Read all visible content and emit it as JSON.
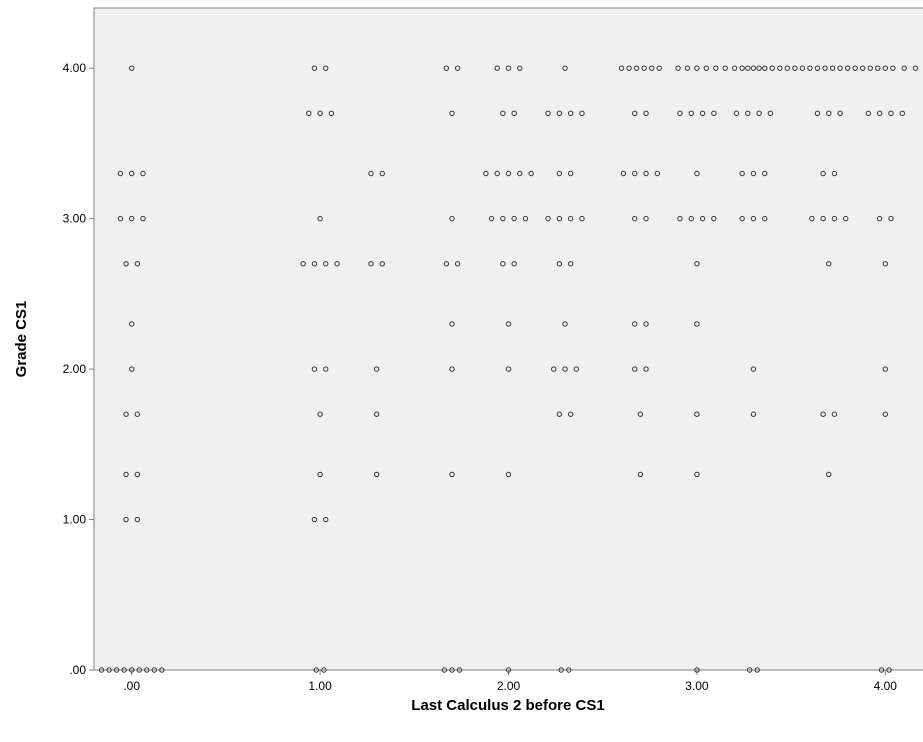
{
  "chart_data": {
    "type": "scatter",
    "title": "",
    "xlabel": "Last Calculus 2 before CS1",
    "ylabel": "Grade CS1",
    "xlim": [
      -0.2,
      4.2
    ],
    "ylim": [
      0,
      4.4
    ],
    "grid": false,
    "x_ticks": [
      {
        "value": 0,
        "label": ".00"
      },
      {
        "value": 1,
        "label": "1.00"
      },
      {
        "value": 2,
        "label": "2.00"
      },
      {
        "value": 3,
        "label": "3.00"
      },
      {
        "value": 4,
        "label": "4.00"
      }
    ],
    "y_ticks": [
      {
        "value": 0,
        "label": ".00"
      },
      {
        "value": 1,
        "label": "1.00"
      },
      {
        "value": 2,
        "label": "2.00"
      },
      {
        "value": 3,
        "label": "3.00"
      },
      {
        "value": 4,
        "label": "4.00"
      }
    ],
    "colors": {
      "plot_background": "#f0f0f0",
      "point_stroke": "#333333",
      "frame": "#808080"
    },
    "points": [
      [
        0.0,
        4.0
      ],
      [
        -0.06,
        3.3
      ],
      [
        0.0,
        3.3
      ],
      [
        0.06,
        3.3
      ],
      [
        -0.06,
        3.0
      ],
      [
        0.0,
        3.0
      ],
      [
        0.06,
        3.0
      ],
      [
        -0.03,
        2.7
      ],
      [
        0.03,
        2.7
      ],
      [
        0.0,
        2.3
      ],
      [
        0.0,
        2.0
      ],
      [
        -0.03,
        1.7
      ],
      [
        0.03,
        1.7
      ],
      [
        -0.03,
        1.3
      ],
      [
        0.03,
        1.3
      ],
      [
        -0.03,
        1.0
      ],
      [
        0.03,
        1.0
      ],
      [
        -0.16,
        0.0
      ],
      [
        -0.12,
        0.0
      ],
      [
        -0.08,
        0.0
      ],
      [
        -0.04,
        0.0
      ],
      [
        0.0,
        0.0
      ],
      [
        0.04,
        0.0
      ],
      [
        0.08,
        0.0
      ],
      [
        0.12,
        0.0
      ],
      [
        0.16,
        0.0
      ],
      [
        0.97,
        4.0
      ],
      [
        1.03,
        4.0
      ],
      [
        0.94,
        3.7
      ],
      [
        1.0,
        3.7
      ],
      [
        1.06,
        3.7
      ],
      [
        1.0,
        3.0
      ],
      [
        0.91,
        2.7
      ],
      [
        0.97,
        2.7
      ],
      [
        1.03,
        2.7
      ],
      [
        1.09,
        2.7
      ],
      [
        0.97,
        2.0
      ],
      [
        1.03,
        2.0
      ],
      [
        1.0,
        1.7
      ],
      [
        1.0,
        1.3
      ],
      [
        0.97,
        1.0
      ],
      [
        1.03,
        1.0
      ],
      [
        0.98,
        0.0
      ],
      [
        1.02,
        0.0
      ],
      [
        1.27,
        3.3
      ],
      [
        1.33,
        3.3
      ],
      [
        1.27,
        2.7
      ],
      [
        1.33,
        2.7
      ],
      [
        1.3,
        2.0
      ],
      [
        1.3,
        1.7
      ],
      [
        1.3,
        1.3
      ],
      [
        1.67,
        4.0
      ],
      [
        1.73,
        4.0
      ],
      [
        1.7,
        3.7
      ],
      [
        1.7,
        3.0
      ],
      [
        1.67,
        2.7
      ],
      [
        1.73,
        2.7
      ],
      [
        1.7,
        2.3
      ],
      [
        1.7,
        2.0
      ],
      [
        1.7,
        1.3
      ],
      [
        1.66,
        0.0
      ],
      [
        1.7,
        0.0
      ],
      [
        1.74,
        0.0
      ],
      [
        1.94,
        4.0
      ],
      [
        2.0,
        4.0
      ],
      [
        2.06,
        4.0
      ],
      [
        1.97,
        3.7
      ],
      [
        2.03,
        3.7
      ],
      [
        1.88,
        3.3
      ],
      [
        1.94,
        3.3
      ],
      [
        2.0,
        3.3
      ],
      [
        2.06,
        3.3
      ],
      [
        2.12,
        3.3
      ],
      [
        1.91,
        3.0
      ],
      [
        1.97,
        3.0
      ],
      [
        2.03,
        3.0
      ],
      [
        2.09,
        3.0
      ],
      [
        1.97,
        2.7
      ],
      [
        2.03,
        2.7
      ],
      [
        2.0,
        2.3
      ],
      [
        2.0,
        2.0
      ],
      [
        2.0,
        1.3
      ],
      [
        2.0,
        0.0
      ],
      [
        2.3,
        4.0
      ],
      [
        2.21,
        3.7
      ],
      [
        2.27,
        3.7
      ],
      [
        2.33,
        3.7
      ],
      [
        2.39,
        3.7
      ],
      [
        2.27,
        3.3
      ],
      [
        2.33,
        3.3
      ],
      [
        2.21,
        3.0
      ],
      [
        2.27,
        3.0
      ],
      [
        2.33,
        3.0
      ],
      [
        2.39,
        3.0
      ],
      [
        2.27,
        2.7
      ],
      [
        2.33,
        2.7
      ],
      [
        2.3,
        2.3
      ],
      [
        2.24,
        2.0
      ],
      [
        2.3,
        2.0
      ],
      [
        2.36,
        2.0
      ],
      [
        2.27,
        1.7
      ],
      [
        2.33,
        1.7
      ],
      [
        2.28,
        0.0
      ],
      [
        2.32,
        0.0
      ],
      [
        2.6,
        4.0
      ],
      [
        2.64,
        4.0
      ],
      [
        2.68,
        4.0
      ],
      [
        2.72,
        4.0
      ],
      [
        2.76,
        4.0
      ],
      [
        2.8,
        4.0
      ],
      [
        2.9,
        4.0
      ],
      [
        2.95,
        4.0
      ],
      [
        3.0,
        4.0
      ],
      [
        3.05,
        4.0
      ],
      [
        3.1,
        4.0
      ],
      [
        3.15,
        4.0
      ],
      [
        3.2,
        4.0
      ],
      [
        3.24,
        4.0
      ],
      [
        3.27,
        4.0
      ],
      [
        3.3,
        4.0
      ],
      [
        3.33,
        4.0
      ],
      [
        3.36,
        4.0
      ],
      [
        3.4,
        4.0
      ],
      [
        3.44,
        4.0
      ],
      [
        3.48,
        4.0
      ],
      [
        3.52,
        4.0
      ],
      [
        3.56,
        4.0
      ],
      [
        3.6,
        4.0
      ],
      [
        3.64,
        4.0
      ],
      [
        3.68,
        4.0
      ],
      [
        3.72,
        4.0
      ],
      [
        3.76,
        4.0
      ],
      [
        3.8,
        4.0
      ],
      [
        3.84,
        4.0
      ],
      [
        3.88,
        4.0
      ],
      [
        3.92,
        4.0
      ],
      [
        3.96,
        4.0
      ],
      [
        4.0,
        4.0
      ],
      [
        4.04,
        4.0
      ],
      [
        4.1,
        4.0
      ],
      [
        4.16,
        4.0
      ],
      [
        2.67,
        3.7
      ],
      [
        2.73,
        3.7
      ],
      [
        2.61,
        3.3
      ],
      [
        2.67,
        3.3
      ],
      [
        2.73,
        3.3
      ],
      [
        2.79,
        3.3
      ],
      [
        2.67,
        3.0
      ],
      [
        2.73,
        3.0
      ],
      [
        2.67,
        2.3
      ],
      [
        2.73,
        2.3
      ],
      [
        2.67,
        2.0
      ],
      [
        2.73,
        2.0
      ],
      [
        2.7,
        1.7
      ],
      [
        2.7,
        1.3
      ],
      [
        2.91,
        3.7
      ],
      [
        2.97,
        3.7
      ],
      [
        3.03,
        3.7
      ],
      [
        3.09,
        3.7
      ],
      [
        3.0,
        3.3
      ],
      [
        2.91,
        3.0
      ],
      [
        2.97,
        3.0
      ],
      [
        3.03,
        3.0
      ],
      [
        3.09,
        3.0
      ],
      [
        3.0,
        2.7
      ],
      [
        3.0,
        2.3
      ],
      [
        3.0,
        1.7
      ],
      [
        3.0,
        1.3
      ],
      [
        3.0,
        0.0
      ],
      [
        3.21,
        3.7
      ],
      [
        3.27,
        3.7
      ],
      [
        3.33,
        3.7
      ],
      [
        3.39,
        3.7
      ],
      [
        3.24,
        3.3
      ],
      [
        3.3,
        3.3
      ],
      [
        3.36,
        3.3
      ],
      [
        3.24,
        3.0
      ],
      [
        3.3,
        3.0
      ],
      [
        3.36,
        3.0
      ],
      [
        3.3,
        2.0
      ],
      [
        3.3,
        1.7
      ],
      [
        3.28,
        0.0
      ],
      [
        3.32,
        0.0
      ],
      [
        3.64,
        3.7
      ],
      [
        3.7,
        3.7
      ],
      [
        3.76,
        3.7
      ],
      [
        3.67,
        3.3
      ],
      [
        3.73,
        3.3
      ],
      [
        3.61,
        3.0
      ],
      [
        3.67,
        3.0
      ],
      [
        3.73,
        3.0
      ],
      [
        3.79,
        3.0
      ],
      [
        3.7,
        2.7
      ],
      [
        3.67,
        1.7
      ],
      [
        3.73,
        1.7
      ],
      [
        3.7,
        1.3
      ],
      [
        3.91,
        3.7
      ],
      [
        3.97,
        3.7
      ],
      [
        4.03,
        3.7
      ],
      [
        4.09,
        3.7
      ],
      [
        3.97,
        3.0
      ],
      [
        4.03,
        3.0
      ],
      [
        4.0,
        2.7
      ],
      [
        4.0,
        2.0
      ],
      [
        4.0,
        1.7
      ],
      [
        3.98,
        0.0
      ],
      [
        4.02,
        0.0
      ]
    ]
  }
}
